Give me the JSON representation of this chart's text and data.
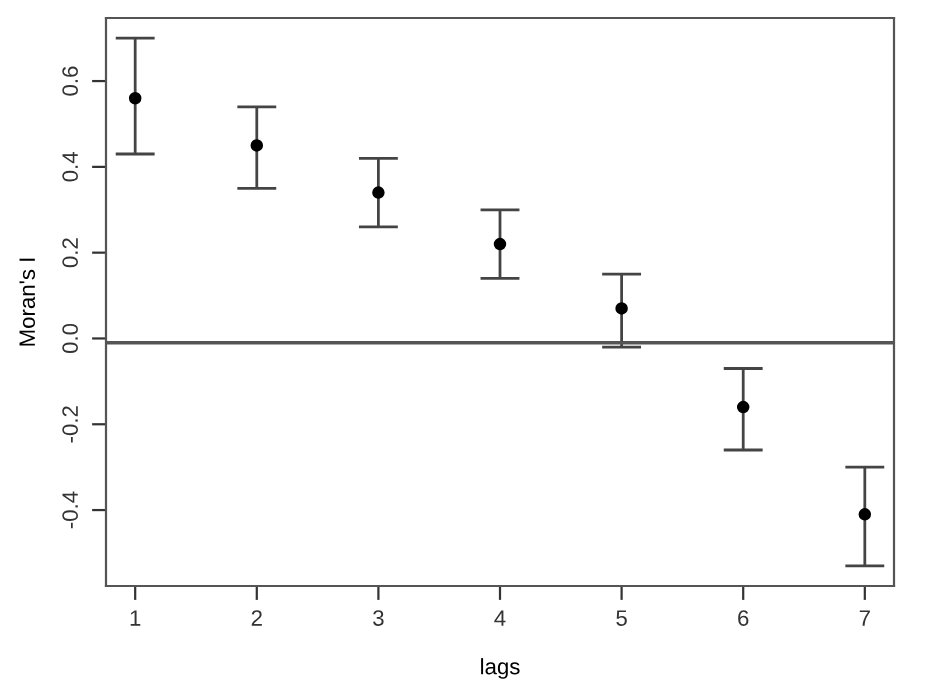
{
  "chart_data": {
    "type": "scatter",
    "xlabel": "lags",
    "ylabel": "Moran's I",
    "x": [
      1,
      2,
      3,
      4,
      5,
      6,
      7
    ],
    "values": [
      0.56,
      0.45,
      0.34,
      0.22,
      0.07,
      -0.16,
      -0.41
    ],
    "errors": [
      [
        0.43,
        0.7
      ],
      [
        0.35,
        0.54
      ],
      [
        0.26,
        0.42
      ],
      [
        0.14,
        0.3
      ],
      [
        -0.02,
        0.15
      ],
      [
        -0.26,
        -0.07
      ],
      [
        -0.53,
        -0.3
      ]
    ],
    "color": "#000000",
    "marker": "circle",
    "xlim": [
      0.76,
      7.24
    ],
    "ylim": [
      -0.577,
      0.747
    ],
    "xticks": [
      1,
      2,
      3,
      4,
      5,
      6,
      7
    ],
    "yticks": [
      {
        "value": -0.4,
        "label": "-0.4"
      },
      {
        "value": -0.2,
        "label": "-0.2"
      },
      {
        "value": 0.0,
        "label": "0.0"
      },
      {
        "value": 0.2,
        "label": "0.2"
      },
      {
        "value": 0.4,
        "label": "0.4"
      },
      {
        "value": 0.6,
        "label": "0.6"
      }
    ],
    "ref_lines": [
      {
        "axis": "y",
        "value": -0.01,
        "color": "#555555"
      }
    ],
    "grid": false
  }
}
